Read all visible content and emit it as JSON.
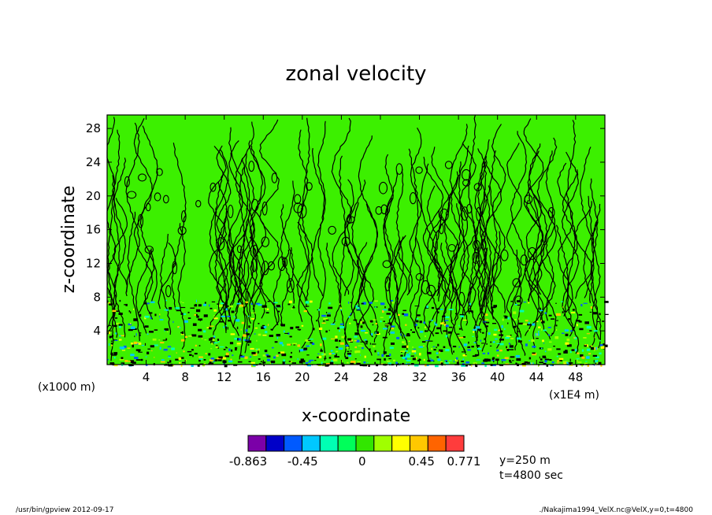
{
  "chart_data": {
    "type": "heatmap",
    "title": "zonal velocity",
    "xlabel": "x-coordinate",
    "ylabel": "z-coordinate",
    "x_unit_left": "(x1000 m)",
    "x_unit_right": "(x1E4 m)",
    "x_ticks": [
      "4",
      "8",
      "12",
      "16",
      "20",
      "24",
      "28",
      "32",
      "36",
      "40",
      "44",
      "48"
    ],
    "y_ticks": [
      "4",
      "8",
      "12",
      "16",
      "20",
      "24",
      "28"
    ],
    "xlim": [
      0,
      51
    ],
    "ylim": [
      0,
      29.6
    ],
    "colorbar": {
      "colors": [
        "#7b00a8",
        "#0000c8",
        "#005aff",
        "#00c8ff",
        "#00ffb4",
        "#00ff5a",
        "#32e600",
        "#a0ff00",
        "#ffff00",
        "#ffc800",
        "#ff6400",
        "#ff3c3c"
      ],
      "labels": [
        "-0.863",
        "-0.45",
        "0",
        "0.45",
        "0.771"
      ],
      "min": -0.863,
      "max": 0.771
    },
    "background_color": "#3cf000",
    "annotations": [
      "y=250 m",
      "t=4800 sec"
    ]
  },
  "footer": {
    "left": "/usr/bin/gpview   2012-09-17",
    "right": "./Nakajima1994_VelX.nc@VelX,y=0,t=4800"
  }
}
